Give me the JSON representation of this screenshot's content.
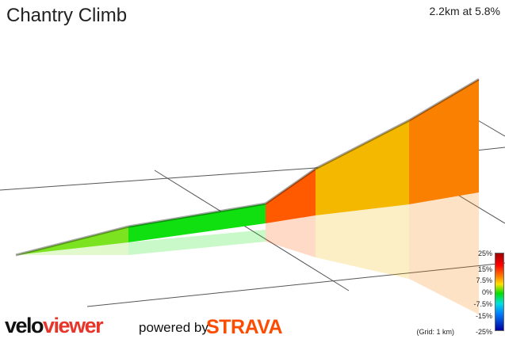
{
  "header": {
    "title": "Chantry Climb",
    "summary": "2.2km at 5.8%"
  },
  "legend": {
    "ticks": [
      "25%",
      "15%",
      "7.5%",
      "0%",
      "-7.5%",
      "-15%",
      "-25%"
    ],
    "grid_note": "(Grid: 1 km)"
  },
  "branding": {
    "logo_velo": "velo",
    "logo_viewer": "viewer",
    "powered_by": "powered by",
    "strava": "STRAVA"
  },
  "colors": {
    "light_green": "#7ce320",
    "green": "#10e010",
    "red_orange": "#ff5a00",
    "yellow_orange": "#f5b800",
    "orange": "#f98000"
  },
  "profile": {
    "segments": [
      {
        "color_key": "light_green"
      },
      {
        "color_key": "green"
      },
      {
        "color_key": "red_orange"
      },
      {
        "color_key": "yellow_orange"
      },
      {
        "color_key": "orange"
      }
    ]
  }
}
